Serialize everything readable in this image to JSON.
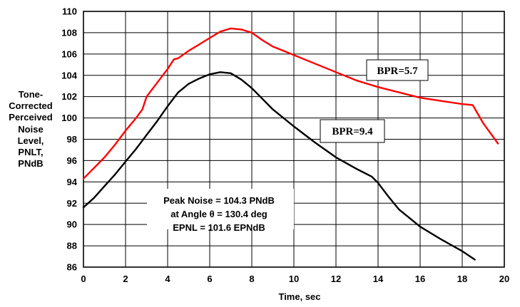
{
  "chart_data": {
    "type": "line",
    "xlabel": "Time, sec",
    "ylabel_lines": [
      "Tone-",
      "Corrected",
      "Perceived",
      "Noise",
      "Level,",
      "PNLT,",
      "PNdB"
    ],
    "xlim": [
      0,
      20
    ],
    "ylim": [
      86,
      110
    ],
    "x_ticks": [
      "0",
      "2",
      "4",
      "6",
      "8",
      "10",
      "12",
      "14",
      "16",
      "18",
      "20"
    ],
    "y_ticks": [
      "86",
      "88",
      "90",
      "92",
      "94",
      "96",
      "98",
      "100",
      "102",
      "104",
      "106",
      "108",
      "110"
    ],
    "grid": true,
    "series": [
      {
        "name": "BPR=5.7",
        "color": "#ff0000",
        "points": [
          [
            0,
            94.3
          ],
          [
            0.5,
            95.3
          ],
          [
            1,
            96.3
          ],
          [
            1.5,
            97.5
          ],
          [
            2,
            98.8
          ],
          [
            2.5,
            100
          ],
          [
            2.8,
            100.8
          ],
          [
            3,
            102
          ],
          [
            3.5,
            103.3
          ],
          [
            4,
            104.6
          ],
          [
            4.3,
            105.5
          ],
          [
            4.5,
            105.6
          ],
          [
            5,
            106.3
          ],
          [
            5.5,
            106.9
          ],
          [
            6,
            107.5
          ],
          [
            6.5,
            108.1
          ],
          [
            7,
            108.4
          ],
          [
            7.5,
            108.3
          ],
          [
            8,
            108
          ],
          [
            8.5,
            107.3
          ],
          [
            9,
            106.7
          ],
          [
            9.5,
            106.3
          ],
          [
            10,
            105.9
          ],
          [
            11,
            105.1
          ],
          [
            12,
            104.3
          ],
          [
            13,
            103.5
          ],
          [
            14,
            102.9
          ],
          [
            15,
            102.4
          ],
          [
            16,
            101.9
          ],
          [
            17,
            101.6
          ],
          [
            18,
            101.3
          ],
          [
            18.5,
            101.2
          ],
          [
            19,
            99.5
          ],
          [
            19.7,
            97.6
          ]
        ]
      },
      {
        "name": "BPR=9.4",
        "color": "#000000",
        "points": [
          [
            0,
            91.6
          ],
          [
            0.5,
            92.5
          ],
          [
            1,
            93.6
          ],
          [
            1.5,
            94.7
          ],
          [
            2,
            95.9
          ],
          [
            2.5,
            97.1
          ],
          [
            3,
            98.4
          ],
          [
            3.5,
            99.7
          ],
          [
            4,
            101.1
          ],
          [
            4.5,
            102.4
          ],
          [
            5,
            103.2
          ],
          [
            5.5,
            103.7
          ],
          [
            6,
            104.1
          ],
          [
            6.5,
            104.3
          ],
          [
            7,
            104.2
          ],
          [
            7.5,
            103.6
          ],
          [
            8,
            102.8
          ],
          [
            8.5,
            101.8
          ],
          [
            9,
            100.8
          ],
          [
            9.5,
            100
          ],
          [
            10,
            99.2
          ],
          [
            11,
            97.7
          ],
          [
            12,
            96.3
          ],
          [
            13,
            95.2
          ],
          [
            13.7,
            94.5
          ],
          [
            14,
            93.9
          ],
          [
            14.5,
            92.6
          ],
          [
            15,
            91.4
          ],
          [
            16,
            89.8
          ],
          [
            17,
            88.6
          ],
          [
            18,
            87.5
          ],
          [
            18.6,
            86.7
          ]
        ]
      }
    ],
    "annotations": {
      "bpr57_label": "BPR=5.7",
      "bpr94_label": "BPR=9.4",
      "peak_lines": [
        "Peak Noise = 104.3 PNdB",
        "at  Angle θ = 130.4 deg",
        "EPNL = 101.6 EPNdB"
      ]
    }
  }
}
